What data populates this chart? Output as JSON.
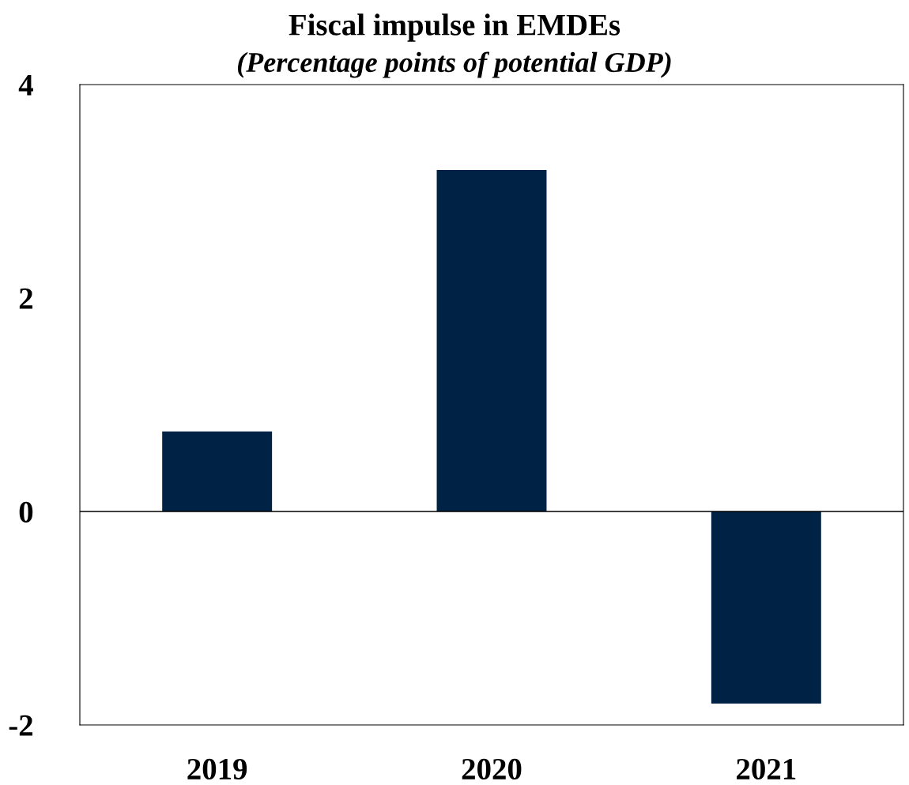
{
  "chart_data": {
    "type": "bar",
    "title": "Fiscal impulse in EMDEs",
    "subtitle": "(Percentage points of potential GDP)",
    "categories": [
      "2019",
      "2020",
      "2021"
    ],
    "values": [
      0.75,
      3.2,
      -1.8
    ],
    "color": "#002345",
    "ylim": [
      -2,
      4
    ],
    "yticks": [
      -2,
      0,
      2,
      4
    ],
    "ref_lines": [
      {
        "axis": "y",
        "value": 0,
        "color": "#000000",
        "line_style": "solid"
      }
    ],
    "grid": false,
    "legend": false
  }
}
